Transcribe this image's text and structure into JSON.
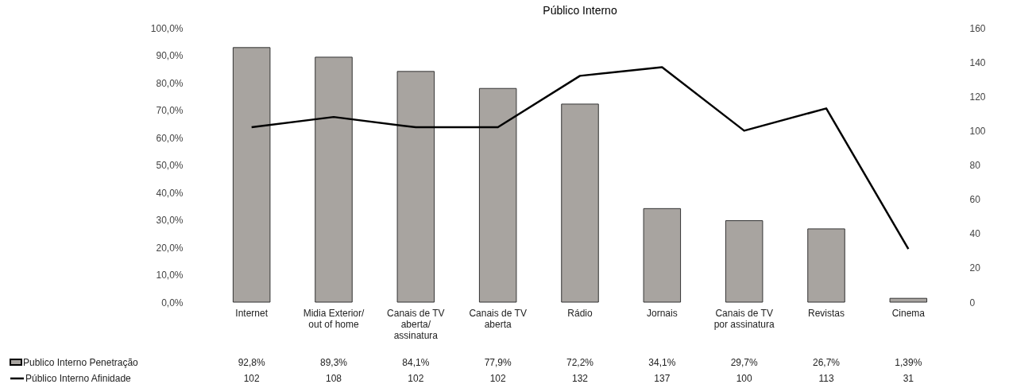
{
  "chart_data": {
    "type": "bar",
    "title": "Público Interno",
    "categories": [
      "Internet",
      "Midia Exterior/\nout of home",
      "Canais de TV\naberta/\nassinatura",
      "Canais de TV\naberta",
      "Rádio",
      "Jornais",
      "Canais de TV\npor assinatura",
      "Revistas",
      "Cinema"
    ],
    "ylim": [
      0,
      100
    ],
    "yticks": [
      {
        "value": 0,
        "label": "0,0%"
      },
      {
        "value": 10,
        "label": "10,0%"
      },
      {
        "value": 20,
        "label": "20,0%"
      },
      {
        "value": 30,
        "label": "30,0%"
      },
      {
        "value": 40,
        "label": "40,0%"
      },
      {
        "value": 50,
        "label": "50,0%"
      },
      {
        "value": 60,
        "label": "60,0%"
      },
      {
        "value": 70,
        "label": "70,0%"
      },
      {
        "value": 80,
        "label": "80,0%"
      },
      {
        "value": 90,
        "label": "90,0%"
      },
      {
        "value": 100,
        "label": "100,0%"
      }
    ],
    "y2lim": [
      0,
      160
    ],
    "y2ticks": [
      0,
      20,
      40,
      60,
      80,
      100,
      120,
      140,
      160
    ],
    "legend": "bottom left",
    "grid": false,
    "series": [
      {
        "name": "Publico Interno Penetração",
        "color": "#a8a4a0",
        "values": [
          92.8,
          89.3,
          84.1,
          77.9,
          72.2,
          34.1,
          29.7,
          26.7,
          1.39
        ],
        "value_labels": [
          "92,8%",
          "89,3%",
          "84,1%",
          "77,9%",
          "72,2%",
          "34,1%",
          "29,7%",
          "26,7%",
          "1,39%"
        ]
      },
      {
        "name": "Público Interno Afinidade",
        "type": "line",
        "axis": "y2",
        "color": "#000000",
        "values": [
          102,
          108,
          102,
          102,
          132,
          137,
          100,
          113,
          31
        ],
        "value_labels": [
          "102",
          "108",
          "102",
          "102",
          "132",
          "137",
          "100",
          "113",
          "31"
        ]
      }
    ]
  }
}
